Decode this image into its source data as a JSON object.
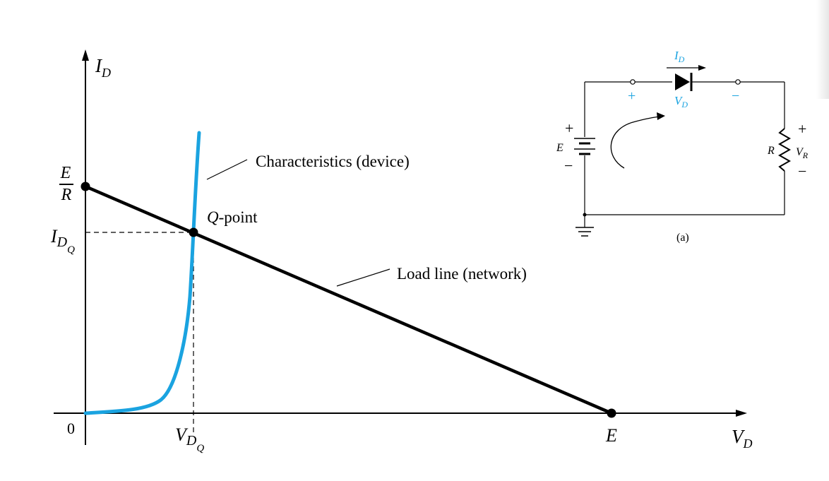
{
  "graph": {
    "y_axis_label": "I",
    "y_axis_sub": "D",
    "x_axis_label": "V",
    "x_axis_sub": "D",
    "origin": "0",
    "er_num": "E",
    "er_den": "R",
    "idq_main": "I",
    "idq_sub": "D",
    "idq_subsub": "Q",
    "vdq_main": "V",
    "vdq_sub": "D",
    "vdq_subsub": "Q",
    "e_tick": "E",
    "characteristics_label": "Characteristics (device)",
    "qpoint_q": "Q",
    "qpoint_rest": "-point",
    "loadline_label": "Load line (network)"
  },
  "circuit": {
    "id_label": "I",
    "id_sub": "D",
    "vd_label": "V",
    "vd_sub": "D",
    "plus_d": "+",
    "minus_d": "−",
    "e_plus": "+",
    "e_label": "E",
    "e_minus": "−",
    "r_label": "R",
    "vr_plus": "+",
    "vr_label": "V",
    "vr_sub": "R",
    "vr_minus": "−",
    "caption": "(a)"
  },
  "colors": {
    "device_curve": "#1aa3e0",
    "blue_labels": "#1aa3e0",
    "line": "#000000"
  }
}
